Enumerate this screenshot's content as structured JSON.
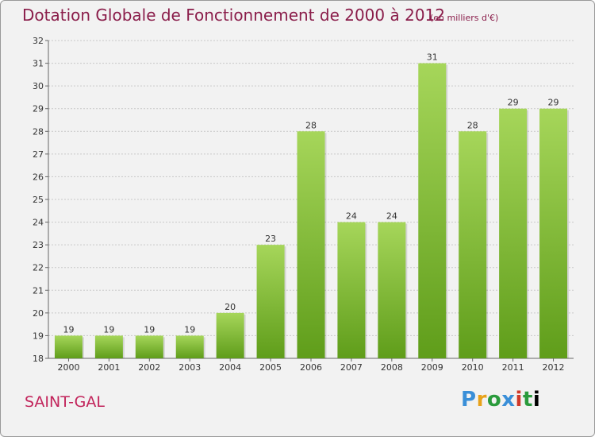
{
  "header": {
    "title": "Dotation Globale de Fonctionnement de 2000 à 2012",
    "subtitle": "(en milliers d'€)"
  },
  "footer": {
    "commune": "SAINT-GAL",
    "logo_text": "Proxiti"
  },
  "colors": {
    "bar_light": "#a6d65a",
    "bar_dark": "#5f9d1a",
    "title": "#8a1d4a",
    "commune": "#c2245b"
  },
  "chart_data": {
    "type": "bar",
    "title": "Dotation Globale de Fonctionnement de 2000 à 2012",
    "subtitle": "(en milliers d'€)",
    "categories": [
      "2000",
      "2001",
      "2002",
      "2003",
      "2004",
      "2005",
      "2006",
      "2007",
      "2008",
      "2009",
      "2010",
      "2011",
      "2012"
    ],
    "values": [
      19,
      19,
      19,
      19,
      20,
      23,
      28,
      24,
      24,
      31,
      28,
      29,
      29
    ],
    "ylim": [
      18,
      32
    ],
    "yticks": [
      18,
      19,
      20,
      21,
      22,
      23,
      24,
      25,
      26,
      27,
      28,
      29,
      30,
      31,
      32
    ],
    "grid": true,
    "legend": "none",
    "data_labels": true
  }
}
